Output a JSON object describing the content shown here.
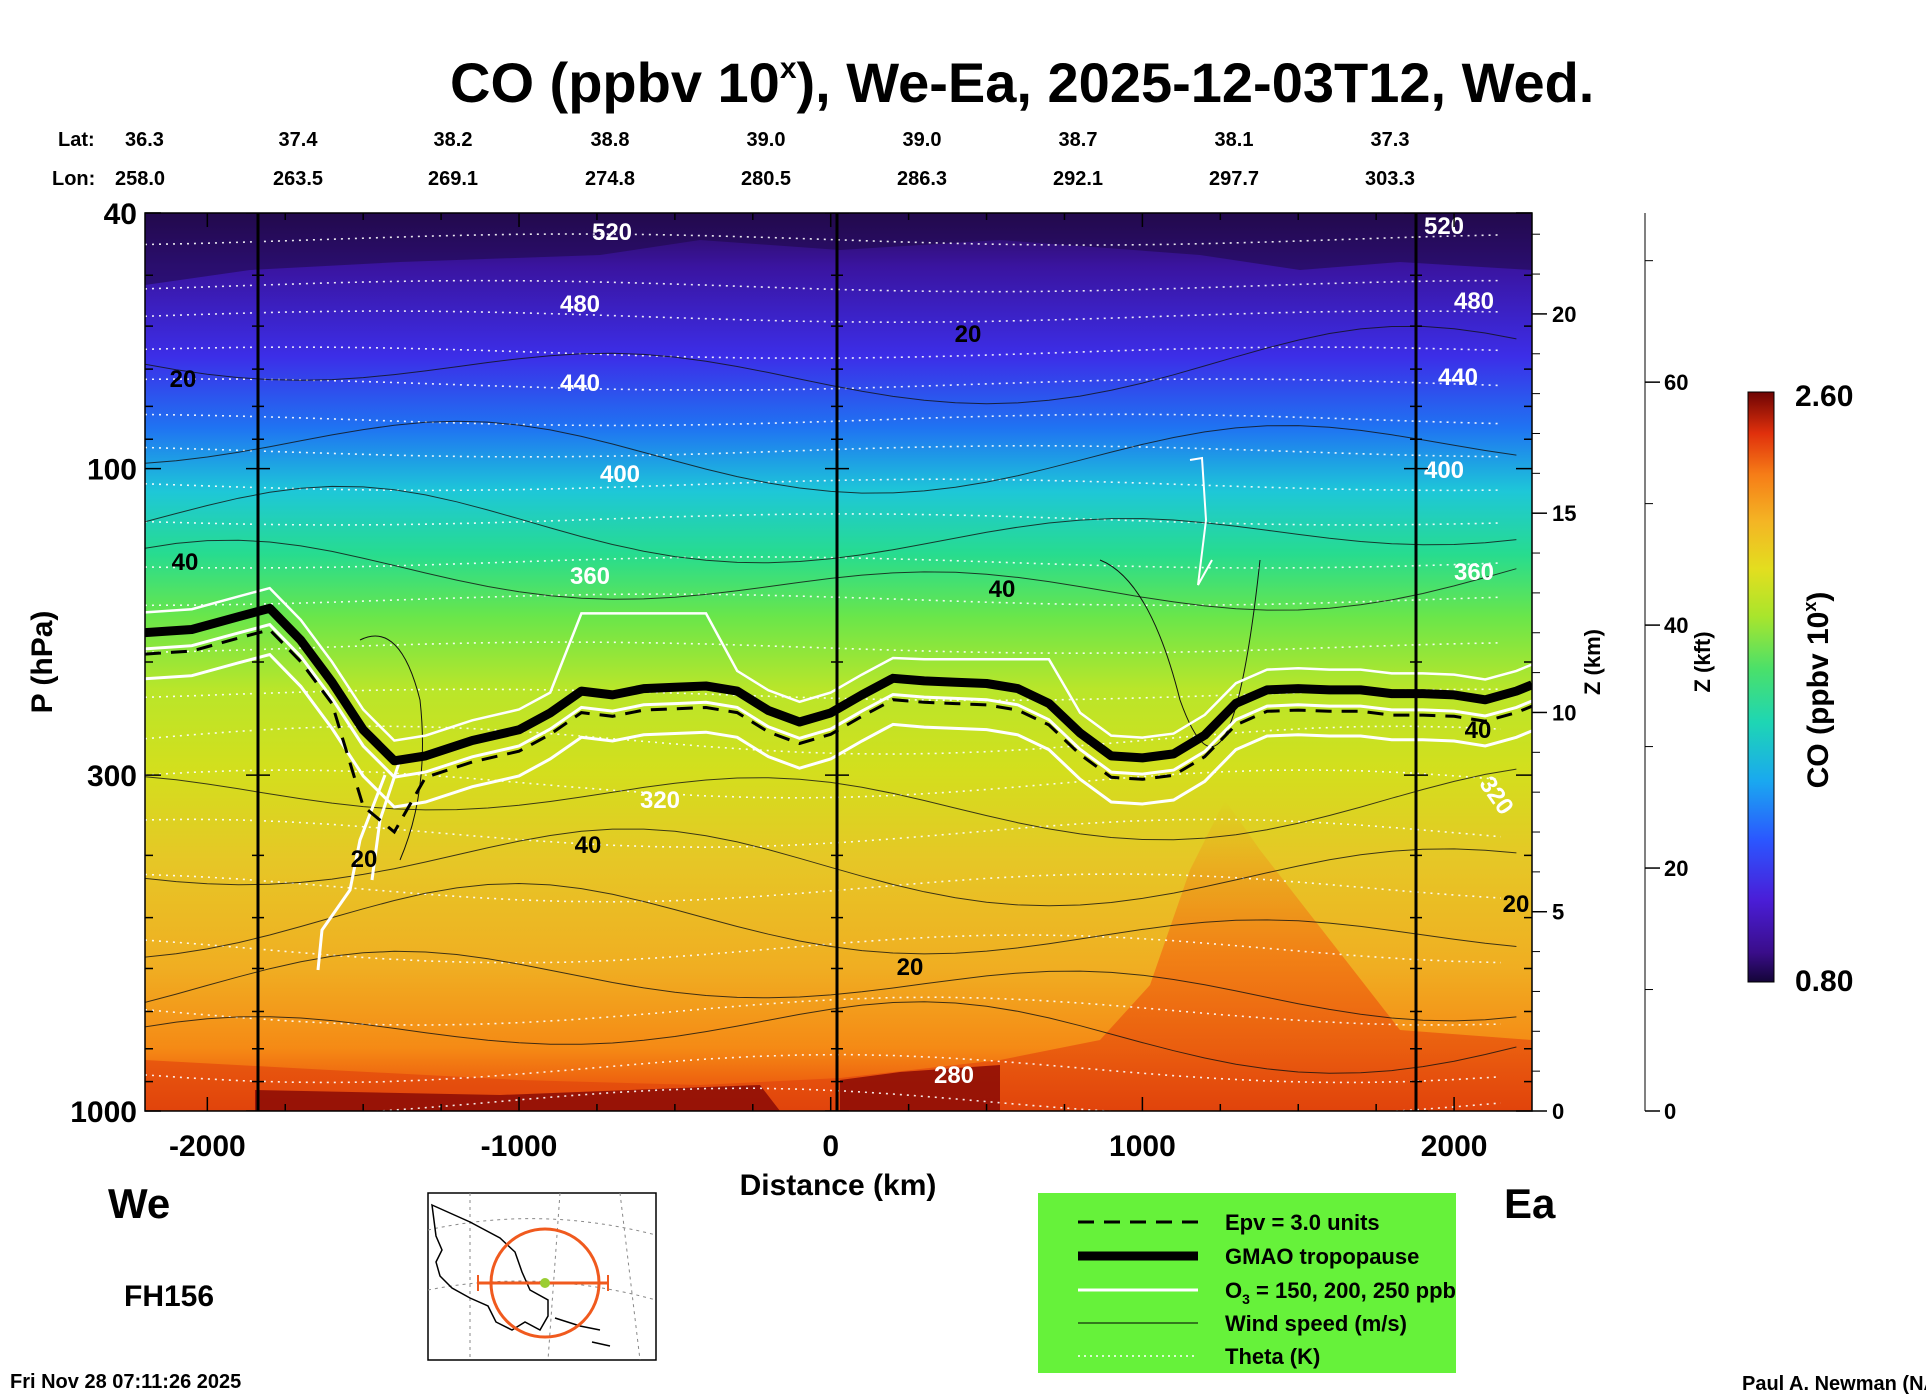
{
  "chart_data": {
    "type": "heatmap",
    "title_main": "CO (ppbv 10",
    "title_sup": "x",
    "title_rest": "), We-Ea, 2025-12-03T12, Wed.",
    "lat_label": "Lat:",
    "lon_label": "Lon:",
    "lats": [
      "36.3",
      "37.4",
      "38.2",
      "38.8",
      "39.0",
      "39.0",
      "38.7",
      "38.1",
      "37.3"
    ],
    "lons": [
      "258.0",
      "263.5",
      "269.1",
      "274.8",
      "280.5",
      "286.3",
      "292.1",
      "297.7",
      "303.3"
    ],
    "xlabel": "Distance (km)",
    "ylabel": "P (hPa)",
    "xlim": [
      -2200,
      2250
    ],
    "ylim": [
      1000,
      40
    ],
    "yscale": "log",
    "x_ticks": [
      -2000,
      -1000,
      0,
      1000,
      2000
    ],
    "y_ticks": [
      40,
      100,
      300,
      1000
    ],
    "z_km_label": "Z (km)",
    "z_km_ticks": [
      0,
      5,
      10,
      15,
      20
    ],
    "z_kft_label": "Z (kft)",
    "z_kft_ticks": [
      0,
      20,
      40,
      60
    ],
    "colorbar": {
      "label": "CO (ppbv 10",
      "label_sup": "x",
      "label_end": ")",
      "min": "0.80",
      "max": "2.60"
    },
    "west_label": "We",
    "east_label": "Ea",
    "forecast_hour": "FH156",
    "theta_labels": [
      "520",
      "480",
      "440",
      "400",
      "360",
      "320",
      "280"
    ],
    "wind_labels": [
      "20",
      "40"
    ],
    "legend": [
      {
        "label": "Epv = 3.0 units",
        "style": "dashed-black"
      },
      {
        "label": "GMAO tropopause",
        "style": "thick-black"
      },
      {
        "label": "O",
        "sub": "3",
        "label_end": " = 150, 200, 250 ppb",
        "style": "white"
      },
      {
        "label": "Wind speed (m/s)",
        "style": "thin-black"
      },
      {
        "label": "Theta (K)",
        "style": "dotted-white"
      }
    ],
    "tropopause": {
      "x": [
        -2200,
        -2050,
        -1900,
        -1800,
        -1700,
        -1600,
        -1500,
        -1400,
        -1300,
        -1150,
        -1000,
        -900,
        -800,
        -700,
        -600,
        -500,
        -400,
        -300,
        -200,
        -100,
        0,
        100,
        200,
        300,
        400,
        500,
        600,
        700,
        800,
        900,
        1000,
        1100,
        1200,
        1300,
        1400,
        1500,
        1600,
        1700,
        1800,
        1900,
        2000,
        2100,
        2200,
        2250
      ],
      "p": [
        180,
        178,
        170,
        165,
        185,
        215,
        255,
        285,
        280,
        265,
        255,
        240,
        222,
        225,
        220,
        219,
        218,
        222,
        238,
        248,
        240,
        225,
        212,
        214,
        215,
        216,
        220,
        232,
        258,
        280,
        282,
        278,
        260,
        232,
        221,
        220,
        221,
        221,
        224,
        224,
        225,
        229,
        222,
        217
      ]
    },
    "timestamp": "Fri Nov 28 07:11:26 2025",
    "credit": "Paul A. Newman (NASA"
  }
}
